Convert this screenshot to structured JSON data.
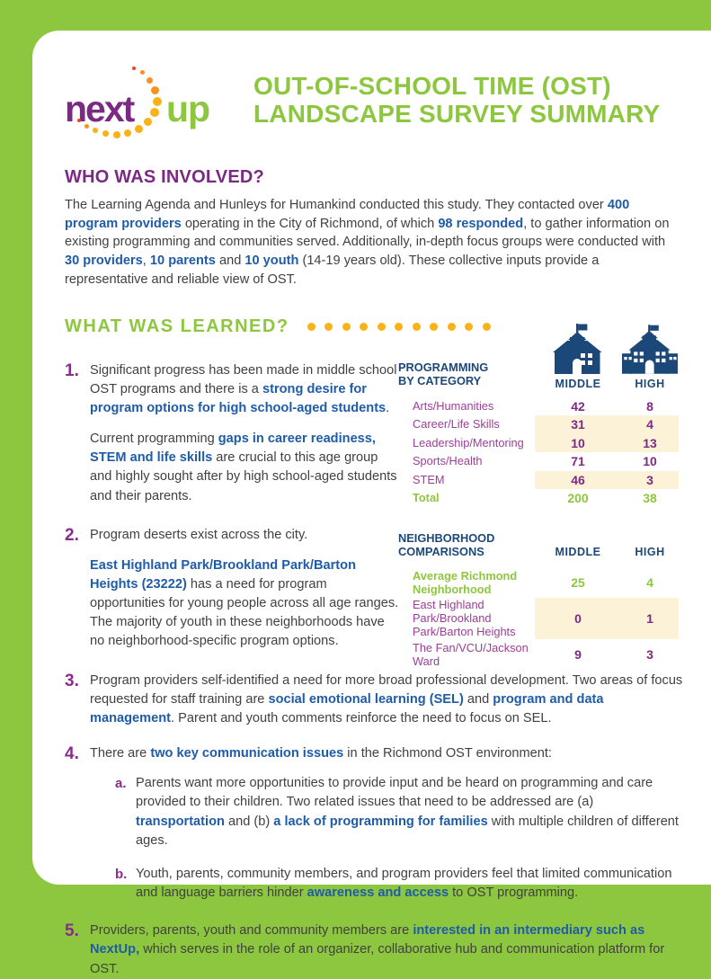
{
  "colors": {
    "frame_green": "#8dc63f",
    "heading_purple": "#7b2a84",
    "navy": "#1c4879",
    "inline_blue": "#1f5ca8",
    "table_label_purple": "#9c3e97",
    "highlight_cream": "#fcf2d8",
    "dot_gold": "#fbb217"
  },
  "logo": {
    "word1": "next",
    "word2": "up"
  },
  "header": {
    "title_line1": "OUT-OF-SCHOOL TIME (OST)",
    "title_line2": "LANDSCAPE SURVEY SUMMARY"
  },
  "who": {
    "heading": "WHO WAS INVOLVED?",
    "segments": [
      {
        "t": "The Learning Agenda and Hunleys for Humankind conducted this study. They contacted over "
      },
      {
        "t": "400 program providers",
        "b": true
      },
      {
        "t": " operating in the City of Richmond, of which "
      },
      {
        "t": "98 responded",
        "b": true
      },
      {
        "t": ", to gather information on existing programming and communities served. Additionally, in-depth focus groups were conducted with "
      },
      {
        "t": "30 providers",
        "b": true
      },
      {
        "t": ", "
      },
      {
        "t": "10 parents",
        "b": true
      },
      {
        "t": " and "
      },
      {
        "t": "10 youth",
        "b": true
      },
      {
        "t": " (14-19 years old). These collective inputs provide a representative and reliable view of OST."
      }
    ]
  },
  "learned": {
    "heading": "WHAT WAS LEARNED?",
    "dots_count": 11
  },
  "findings": [
    {
      "num": "1.",
      "paragraphs": [
        [
          {
            "t": "Significant progress has been made in middle school OST programs and there is a "
          },
          {
            "t": "strong desire for program options for high school-aged students",
            "b": true
          },
          {
            "t": "."
          }
        ],
        [
          {
            "t": "Current programming "
          },
          {
            "t": "gaps in career readiness, STEM and life skills",
            "b": true
          },
          {
            "t": " are crucial to this age group and highly sought after by high school-aged students and their parents."
          }
        ]
      ]
    },
    {
      "num": "2.",
      "paragraphs": [
        [
          {
            "t": "Program deserts exist across the city."
          }
        ],
        [
          {
            "t": "East Highland Park/Brookland Park/Barton Heights (23222)",
            "b": true
          },
          {
            "t": " has a need for program opportunities for young people across all age ranges. The majority of youth in these neighborhoods have no neighborhood-specific program options."
          }
        ]
      ]
    },
    {
      "num": "3.",
      "paragraphs": [
        [
          {
            "t": "Program providers self-identified a need for more broad professional development. Two areas of focus requested for staff training are "
          },
          {
            "t": "social emotional learning (SEL)",
            "b": true
          },
          {
            "t": " and "
          },
          {
            "t": "program and data management",
            "b": true
          },
          {
            "t": ". Parent and youth comments reinforce the need to focus on SEL."
          }
        ]
      ]
    },
    {
      "num": "4.",
      "paragraphs": [
        [
          {
            "t": "There are "
          },
          {
            "t": "two key communication issues",
            "b": true
          },
          {
            "t": " in the Richmond OST environment:"
          }
        ]
      ],
      "subitems": [
        {
          "letter": "a.",
          "segments": [
            {
              "t": "Parents want more opportunities to provide input and be heard on programming and care provided to their children. Two related issues that need to be addressed are (a) "
            },
            {
              "t": "transportation",
              "b": true
            },
            {
              "t": " and (b) "
            },
            {
              "t": "a lack of programming for families",
              "b": true
            },
            {
              "t": " with multiple children of different ages."
            }
          ]
        },
        {
          "letter": "b.",
          "segments": [
            {
              "t": "Youth, parents, community members, and program providers feel that limited communication and language barriers hinder "
            },
            {
              "t": "awareness and access",
              "b": true
            },
            {
              "t": " to OST programming."
            }
          ]
        }
      ]
    },
    {
      "num": "5.",
      "paragraphs": [
        [
          {
            "t": "Providers, parents, youth and community members are "
          },
          {
            "t": "interested in an intermediary such as NextUp,",
            "b": true
          },
          {
            "t": " which serves in the role of an organizer, collaborative hub and communication platform for OST."
          }
        ]
      ]
    }
  ],
  "aside": {
    "schools": {
      "middle_label": "MIDDLE",
      "high_label": "HIGH"
    },
    "programming": {
      "heading_line1": "PROGRAMMING",
      "heading_line2": "BY CATEGORY",
      "rows": [
        {
          "label": "Arts/Humanities",
          "middle": "42",
          "high": "8",
          "highlight": false
        },
        {
          "label": "Career/Life Skills",
          "middle": "31",
          "high": "4",
          "highlight": true
        },
        {
          "label": "Leadership/Mentoring",
          "middle": "10",
          "high": "13",
          "highlight": true
        },
        {
          "label": "Sports/Health",
          "middle": "71",
          "high": "10",
          "highlight": false
        },
        {
          "label": "STEM",
          "middle": "46",
          "high": "3",
          "highlight": true
        }
      ],
      "total": {
        "label": "Total",
        "middle": "200",
        "high": "38"
      }
    },
    "neighborhood": {
      "heading_line1": "NEIGHBORHOOD",
      "heading_line2": "COMPARISONS",
      "col_middle": "MIDDLE",
      "col_high": "HIGH",
      "rows": [
        {
          "label": "Average Richmond Neighborhood",
          "middle": "25",
          "high": "4",
          "green": true,
          "highlight": false
        },
        {
          "label": "East Highland Park/Brookland Park/Barton Heights",
          "middle": "0",
          "high": "1",
          "green": false,
          "highlight": true
        },
        {
          "label": "The Fan/VCU/Jackson Ward",
          "middle": "9",
          "high": "3",
          "green": false,
          "highlight": false
        }
      ]
    }
  }
}
